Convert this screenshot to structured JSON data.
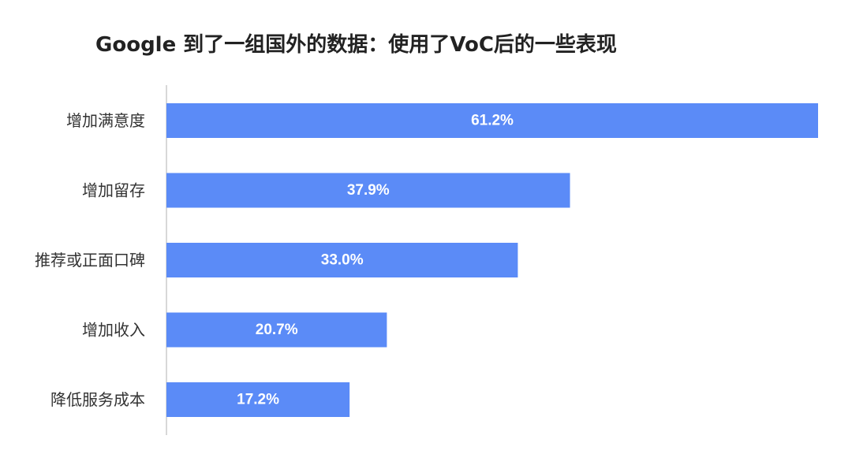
{
  "chart_data": {
    "type": "bar",
    "orientation": "horizontal",
    "title": "Google 到了一组国外的数据：使用了VoC后的一些表现",
    "categories": [
      "增加满意度",
      "增加留存",
      "推荐或正面口碑",
      "增加收入",
      "降低服务成本"
    ],
    "values": [
      61.2,
      37.9,
      33.0,
      20.7,
      17.2
    ],
    "data_labels": [
      "61.2%",
      "37.9%",
      "33.0%",
      "20.7%",
      "17.2%"
    ],
    "unit": "%",
    "grid": false,
    "legend": "none",
    "bar_color": "#5b8bf7",
    "label_color": "#ffffff",
    "axis_color": "#cccccc",
    "text_color": "#333333"
  }
}
